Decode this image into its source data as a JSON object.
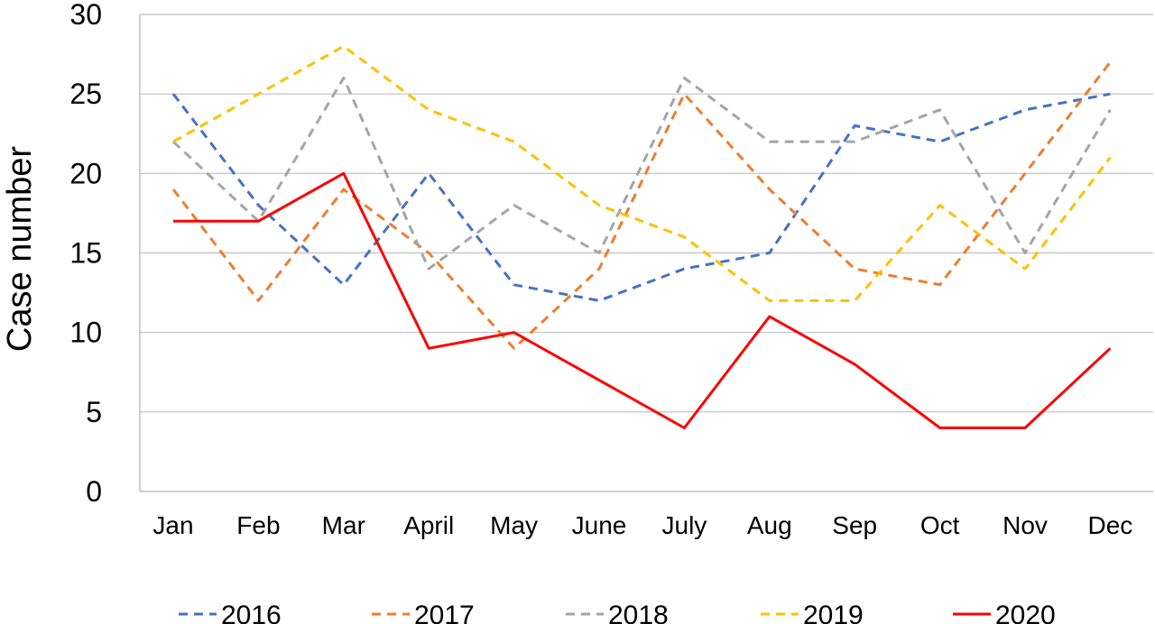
{
  "chart_data": {
    "type": "line",
    "title": "",
    "xlabel": "",
    "ylabel": "Case number",
    "ylim": [
      0,
      30
    ],
    "yticks": [
      0,
      5,
      10,
      15,
      20,
      25,
      30
    ],
    "grid": "horizontal",
    "legend_position": "bottom",
    "categories": [
      "Jan",
      "Feb",
      "Mar",
      "April",
      "May",
      "June",
      "July",
      "Aug",
      "Sep",
      "Oct",
      "Nov",
      "Dec"
    ],
    "series": [
      {
        "name": "2016",
        "color": "#4472C4",
        "dashed": true,
        "values": [
          25,
          18,
          13,
          20,
          13,
          12,
          14,
          15,
          23,
          22,
          24,
          25
        ]
      },
      {
        "name": "2017",
        "color": "#ED7D31",
        "dashed": true,
        "values": [
          19,
          12,
          19,
          15,
          9,
          14,
          25,
          19,
          14,
          13,
          20,
          27
        ]
      },
      {
        "name": "2018",
        "color": "#A5A5A5",
        "dashed": true,
        "values": [
          22,
          17,
          26,
          14,
          18,
          15,
          26,
          22,
          22,
          24,
          15,
          24
        ]
      },
      {
        "name": "2019",
        "color": "#FFC000",
        "dashed": true,
        "values": [
          22,
          25,
          28,
          24,
          22,
          18,
          16,
          12,
          12,
          18,
          14,
          21
        ]
      },
      {
        "name": "2020",
        "color": "#FF0000",
        "dashed": false,
        "values": [
          17,
          17,
          20,
          9,
          10,
          7,
          4,
          11,
          8,
          4,
          4,
          9
        ]
      }
    ]
  }
}
